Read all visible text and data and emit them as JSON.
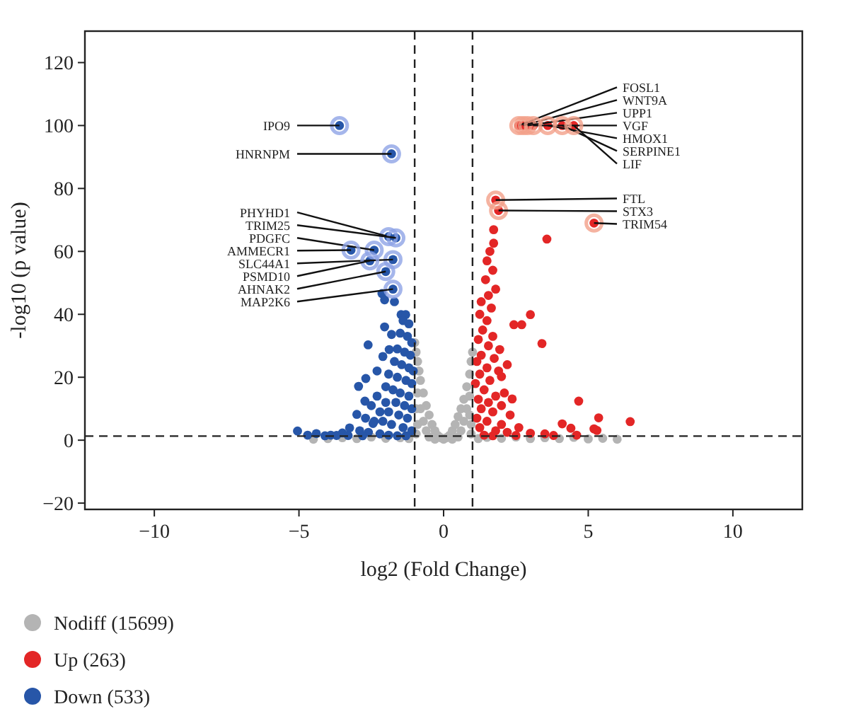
{
  "chart_data": {
    "type": "scatter",
    "xlabel": "log2 (Fold Change)",
    "ylabel": "-log10 (p value)",
    "xlim": [
      -12.4,
      12.4
    ],
    "ylim": [
      -22,
      130
    ],
    "xticks": [
      {
        "value": -10,
        "label": "−10"
      },
      {
        "value": -5,
        "label": "−5"
      },
      0,
      5,
      10
    ],
    "yticks": [
      {
        "value": -20,
        "label": "−20"
      },
      0,
      20,
      40,
      60,
      80,
      100,
      120
    ],
    "grid": false,
    "legend": "bottom",
    "marker": "circle",
    "ref_lines": [
      {
        "axis": "x",
        "value": -1,
        "line_style": "dashed",
        "color": "#222222"
      },
      {
        "axis": "x",
        "value": 1,
        "line_style": "dashed",
        "color": "#222222"
      },
      {
        "axis": "y",
        "value": 1.3,
        "line_style": "dashed",
        "color": "#222222"
      }
    ],
    "series": [
      {
        "name": "Nodiff (15699)",
        "color": "#b4b4b4",
        "x": [
          -1.0,
          -0.95,
          -0.9,
          -0.85,
          -0.8,
          -0.7,
          -0.6,
          -0.5,
          -0.4,
          -0.3,
          -0.2,
          -0.1,
          0,
          0.1,
          0.2,
          0.3,
          0.4,
          0.5,
          0.6,
          0.7,
          0.8,
          0.9,
          0.95,
          1.0,
          -0.9,
          -0.8,
          -0.7,
          -0.6,
          -0.9,
          -0.95,
          -0.5,
          0.5,
          0.6,
          0.7,
          0.8,
          0.9,
          0.95,
          0.9,
          -0.95,
          0.95,
          -0.3,
          0.3,
          -4.5,
          -4,
          -3.5,
          -3,
          -2.5,
          -2,
          -1.5,
          -1.2,
          1.2,
          1.5,
          2,
          2.5,
          3,
          3.5,
          4,
          4.5,
          5,
          5.5,
          6
        ],
        "values": [
          31,
          28,
          25,
          22,
          19,
          15,
          11,
          8,
          5,
          3,
          1.5,
          0.8,
          0.3,
          0.8,
          1.5,
          3,
          5,
          7.5,
          10,
          13,
          17,
          21,
          25,
          28,
          15,
          10,
          6,
          3,
          5,
          10,
          1,
          1,
          3,
          6,
          10,
          14,
          5,
          8,
          2,
          2,
          0.3,
          0.3,
          0.3,
          0.5,
          0.8,
          0.5,
          1,
          0.6,
          0.8,
          0.5,
          0.5,
          0.9,
          0.6,
          1,
          0.5,
          0.8,
          0.5,
          0.9,
          0.4,
          0.6,
          0.3
        ]
      },
      {
        "name": "Up (263)",
        "color": "#e32626",
        "x": [
          2.6,
          2.75,
          2.9,
          3.1,
          3.6,
          4.1,
          4.5,
          1.8,
          1.9,
          5.2,
          1.73,
          3.57,
          1.73,
          1.6,
          1.5,
          1.7,
          1.45,
          1.8,
          1.55,
          1.3,
          1.65,
          1.25,
          3.0,
          1.5,
          2.43,
          2.7,
          1.35,
          1.7,
          1.2,
          3.4,
          1.55,
          1.94,
          1.3,
          1.75,
          1.15,
          2.2,
          1.5,
          1.9,
          1.25,
          2.0,
          1.6,
          1.1,
          1.4,
          2.1,
          1.8,
          2.37,
          4.67,
          1.2,
          1.55,
          2.0,
          1.3,
          1.7,
          2.3,
          1.15,
          1.5,
          5.36,
          6.45,
          4.1,
          4.4,
          5.2,
          5.3,
          2.0,
          2.6,
          1.25,
          1.8,
          2.2,
          3.0,
          3.5,
          1.4,
          1.7,
          2.5,
          3.8,
          4.6
        ],
        "values": [
          100,
          100,
          100,
          100,
          100,
          100,
          100,
          76.3,
          73,
          69,
          66.9,
          63.9,
          62.6,
          60,
          57,
          54,
          51,
          48,
          46,
          44,
          42,
          40,
          39.9,
          38,
          36.7,
          36.7,
          35,
          33,
          32,
          30.7,
          30,
          28.8,
          27,
          26,
          25,
          24,
          23,
          22,
          21,
          20.2,
          19,
          18,
          16,
          15,
          14,
          13.1,
          12.4,
          13,
          12,
          11,
          10,
          9,
          8,
          7,
          6,
          7.1,
          5.9,
          5.2,
          3.8,
          3.6,
          3.1,
          5,
          4,
          4,
          3,
          2.5,
          2.2,
          2,
          1.6,
          1.4,
          1.5,
          1.5,
          1.6
        ]
      },
      {
        "name": "Down (533)",
        "color": "#2756a8",
        "x": [
          -3.6,
          -1.8,
          -1.9,
          -1.65,
          -2.4,
          -3.2,
          -1.75,
          -2.55,
          -2.0,
          -1.75,
          -2.13,
          -2.04,
          -1.7,
          -1.47,
          -1.31,
          -1.4,
          -1.2,
          -2.04,
          -1.8,
          -1.5,
          -1.25,
          -1.1,
          -2.61,
          -1.88,
          -1.6,
          -1.35,
          -1.15,
          -2.1,
          -1.7,
          -1.45,
          -1.2,
          -1.05,
          -2.3,
          -1.9,
          -1.6,
          -2.69,
          -1.3,
          -1.1,
          -2.94,
          -2.0,
          -1.75,
          -1.5,
          -1.2,
          -2.3,
          -2.72,
          -2.0,
          -1.65,
          -1.35,
          -1.1,
          -2.5,
          -2.2,
          -1.9,
          -1.55,
          -1.25,
          -3.0,
          -2.7,
          -2.4,
          -2.1,
          -1.8,
          -1.4,
          -1.1,
          -2.44,
          -3.25,
          -2.9,
          -2.6,
          -2.2,
          -1.9,
          -1.6,
          -1.3,
          -3.5,
          -3.9,
          -4.4,
          -5.05,
          -4.7,
          -4.1,
          -3.7,
          -3.3,
          -2.8
        ],
        "values": [
          100,
          91,
          64.7,
          64.3,
          60.4,
          60.4,
          57.4,
          57,
          53.6,
          48,
          46.6,
          44.6,
          44,
          39.9,
          39.9,
          38,
          37,
          36,
          33.6,
          34,
          33,
          31,
          30.3,
          28.8,
          29,
          28,
          27,
          26.6,
          25,
          24,
          23,
          22,
          22,
          21,
          20,
          19.6,
          19,
          18,
          17.1,
          17,
          16,
          15,
          14,
          14,
          12.4,
          12,
          12,
          11,
          10,
          11,
          9,
          9,
          8,
          7,
          8.2,
          7,
          6,
          6,
          5,
          4,
          3,
          5.3,
          3.9,
          3,
          2.5,
          2,
          1.6,
          1.4,
          1.4,
          2.3,
          1.6,
          2.1,
          2.9,
          1.6,
          1.4,
          1.5,
          1.5,
          1.4
        ]
      }
    ],
    "annotations": [
      {
        "text": "IPO9",
        "x": -3.6,
        "y": 100
      },
      {
        "text": "HNRNPM",
        "x": -1.8,
        "y": 91
      },
      {
        "text": "PHYHD1",
        "x": -1.9,
        "y": 64.7
      },
      {
        "text": "TRIM25",
        "x": -1.65,
        "y": 64.3
      },
      {
        "text": "PDGFC",
        "x": -2.4,
        "y": 60.4
      },
      {
        "text": "AMMECR1",
        "x": -3.2,
        "y": 60.4
      },
      {
        "text": "SLC44A1",
        "x": -1.75,
        "y": 57.4
      },
      {
        "text": "PSMD10",
        "x": -2.55,
        "y": 57
      },
      {
        "text": "AHNAK2",
        "x": -2.0,
        "y": 53.6
      },
      {
        "text": "MAP2K6",
        "x": -1.75,
        "y": 48
      },
      {
        "text": "FOSL1",
        "x": 2.6,
        "y": 100
      },
      {
        "text": "WNT9A",
        "x": 2.75,
        "y": 100
      },
      {
        "text": "UPP1",
        "x": 2.9,
        "y": 100
      },
      {
        "text": "VGF",
        "x": 3.1,
        "y": 100
      },
      {
        "text": "HMOX1",
        "x": 3.6,
        "y": 100
      },
      {
        "text": "SERPINE1",
        "x": 4.1,
        "y": 100
      },
      {
        "text": "LIF",
        "x": 4.5,
        "y": 100
      },
      {
        "text": "FTL",
        "x": 1.8,
        "y": 76.3
      },
      {
        "text": "STX3",
        "x": 1.9,
        "y": 73
      },
      {
        "text": "TRIM54",
        "x": 5.2,
        "y": 69
      }
    ]
  }
}
